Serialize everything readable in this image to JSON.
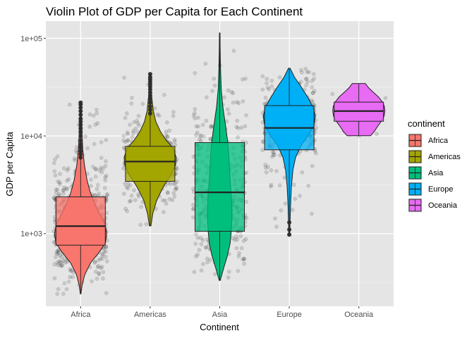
{
  "chart_data": {
    "type": "violin",
    "title": "Violin Plot of GDP per Capita for Each Continent",
    "xlabel": "Continent",
    "ylabel": "GDP per Capita",
    "y_scale": "log10",
    "ylim": [
      180,
      150000
    ],
    "y_ticks": [
      {
        "value": 1000,
        "label": "1e+03"
      },
      {
        "value": 10000,
        "label": "1e+04"
      },
      {
        "value": 100000,
        "label": "1e+05"
      }
    ],
    "categories": [
      "Africa",
      "Americas",
      "Asia",
      "Europe",
      "Oceania"
    ],
    "legend": {
      "title": "continent",
      "position": "right"
    },
    "grid": true,
    "background": "#e5e5e5",
    "series": [
      {
        "name": "Africa",
        "color": "#F8766D",
        "min": 241,
        "q1": 761,
        "median": 1192,
        "q3": 2377,
        "max": 21951,
        "violin": [
          [
            241,
            0.01
          ],
          [
            300,
            0.06
          ],
          [
            380,
            0.16
          ],
          [
            500,
            0.38
          ],
          [
            650,
            0.72
          ],
          [
            800,
            0.95
          ],
          [
            1000,
            1.0
          ],
          [
            1250,
            0.93
          ],
          [
            1600,
            0.72
          ],
          [
            2000,
            0.55
          ],
          [
            2600,
            0.38
          ],
          [
            3500,
            0.25
          ],
          [
            5000,
            0.15
          ],
          [
            7000,
            0.09
          ],
          [
            10000,
            0.06
          ],
          [
            14000,
            0.045
          ],
          [
            18000,
            0.03
          ],
          [
            21951,
            0.02
          ]
        ],
        "outliers": [
          6000,
          6500,
          7000,
          7600,
          8200,
          9000,
          10000,
          11000,
          12000,
          13000,
          14000,
          15000,
          16500,
          18000,
          19500,
          21000,
          21951
        ]
      },
      {
        "name": "Americas",
        "color": "#A3A500",
        "min": 1202,
        "q1": 3428,
        "median": 5466,
        "q3": 7830,
        "max": 42952,
        "violin": [
          [
            1202,
            0.03
          ],
          [
            1600,
            0.1
          ],
          [
            2200,
            0.25
          ],
          [
            3000,
            0.5
          ],
          [
            4000,
            0.8
          ],
          [
            5000,
            0.97
          ],
          [
            6000,
            1.0
          ],
          [
            7500,
            0.88
          ],
          [
            9000,
            0.62
          ],
          [
            11000,
            0.4
          ],
          [
            14000,
            0.22
          ],
          [
            18000,
            0.12
          ],
          [
            24000,
            0.07
          ],
          [
            30000,
            0.04
          ],
          [
            36000,
            0.03
          ],
          [
            42952,
            0.02
          ]
        ],
        "outliers": [
          17000,
          18500,
          20000,
          22000,
          24000,
          26000,
          28000,
          30000,
          32000,
          34000,
          36000,
          38000,
          40000,
          42952
        ]
      },
      {
        "name": "Asia",
        "color": "#00BF7D",
        "min": 331,
        "q1": 1057,
        "median": 2647,
        "q3": 8549,
        "max": 113523,
        "violin": [
          [
            331,
            0.02
          ],
          [
            450,
            0.16
          ],
          [
            600,
            0.3
          ],
          [
            800,
            0.4
          ],
          [
            1100,
            0.45
          ],
          [
            1500,
            0.47
          ],
          [
            2000,
            0.46
          ],
          [
            2700,
            0.43
          ],
          [
            3500,
            0.4
          ],
          [
            5000,
            0.37
          ],
          [
            7000,
            0.34
          ],
          [
            9000,
            0.3
          ],
          [
            13000,
            0.22
          ],
          [
            20000,
            0.12
          ],
          [
            30000,
            0.06
          ],
          [
            50000,
            0.03
          ],
          [
            80000,
            0.015
          ],
          [
            113523,
            0.01
          ]
        ],
        "outliers": []
      },
      {
        "name": "Europe",
        "color": "#00B0F6",
        "min": 974,
        "q1": 7213,
        "median": 12082,
        "q3": 20461,
        "max": 49357,
        "violin": [
          [
            974,
            0.02
          ],
          [
            1300,
            0.03
          ],
          [
            2000,
            0.05
          ],
          [
            3000,
            0.08
          ],
          [
            4500,
            0.14
          ],
          [
            6000,
            0.24
          ],
          [
            8000,
            0.45
          ],
          [
            10000,
            0.72
          ],
          [
            13000,
            0.95
          ],
          [
            16000,
            1.0
          ],
          [
            20000,
            0.9
          ],
          [
            25000,
            0.7
          ],
          [
            32000,
            0.45
          ],
          [
            40000,
            0.2
          ],
          [
            49357,
            0.03
          ]
        ],
        "outliers": [
          974,
          1100,
          1300
        ]
      },
      {
        "name": "Oceania",
        "color": "#E76BF3",
        "min": 10040,
        "q1": 14142,
        "median": 17983,
        "q3": 22214,
        "max": 34435,
        "violin": [
          [
            10040,
            0.45
          ],
          [
            11000,
            0.58
          ],
          [
            12500,
            0.72
          ],
          [
            14000,
            0.85
          ],
          [
            16000,
            0.97
          ],
          [
            18000,
            1.0
          ],
          [
            20000,
            0.98
          ],
          [
            22000,
            0.92
          ],
          [
            25000,
            0.76
          ],
          [
            28000,
            0.56
          ],
          [
            31000,
            0.38
          ],
          [
            34435,
            0.25
          ]
        ],
        "outliers": []
      }
    ]
  }
}
